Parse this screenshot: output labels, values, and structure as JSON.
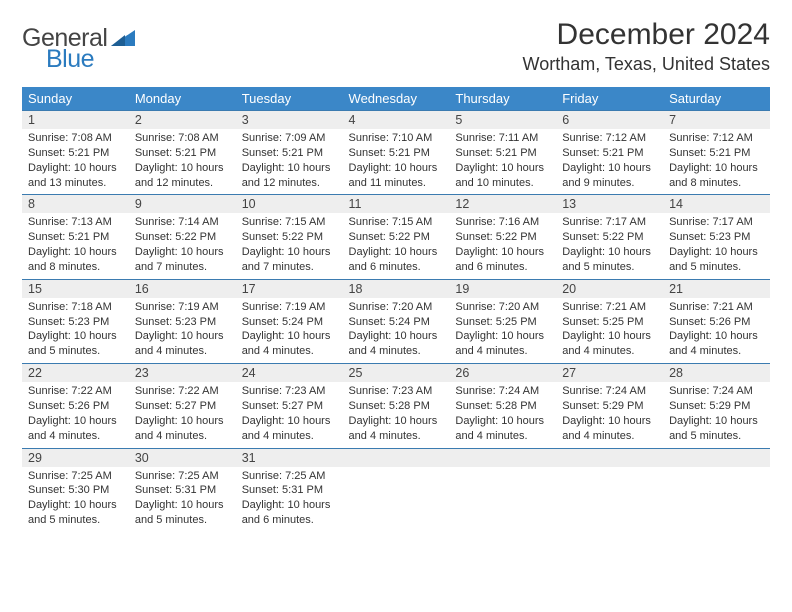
{
  "logo": {
    "text_top": "General",
    "text_bottom": "Blue",
    "tri_color": "#2b7bbf"
  },
  "title": "December 2024",
  "location": "Wortham, Texas, United States",
  "colors": {
    "header_bg": "#3b87c8",
    "header_fg": "#ffffff",
    "daynum_bg": "#eeeeee",
    "row_border": "#3b7bb0",
    "text": "#333333"
  },
  "weekdays": [
    "Sunday",
    "Monday",
    "Tuesday",
    "Wednesday",
    "Thursday",
    "Friday",
    "Saturday"
  ],
  "weeks": [
    [
      {
        "n": "1",
        "sr": "7:08 AM",
        "ss": "5:21 PM",
        "dl": "10 hours and 13 minutes."
      },
      {
        "n": "2",
        "sr": "7:08 AM",
        "ss": "5:21 PM",
        "dl": "10 hours and 12 minutes."
      },
      {
        "n": "3",
        "sr": "7:09 AM",
        "ss": "5:21 PM",
        "dl": "10 hours and 12 minutes."
      },
      {
        "n": "4",
        "sr": "7:10 AM",
        "ss": "5:21 PM",
        "dl": "10 hours and 11 minutes."
      },
      {
        "n": "5",
        "sr": "7:11 AM",
        "ss": "5:21 PM",
        "dl": "10 hours and 10 minutes."
      },
      {
        "n": "6",
        "sr": "7:12 AM",
        "ss": "5:21 PM",
        "dl": "10 hours and 9 minutes."
      },
      {
        "n": "7",
        "sr": "7:12 AM",
        "ss": "5:21 PM",
        "dl": "10 hours and 8 minutes."
      }
    ],
    [
      {
        "n": "8",
        "sr": "7:13 AM",
        "ss": "5:21 PM",
        "dl": "10 hours and 8 minutes."
      },
      {
        "n": "9",
        "sr": "7:14 AM",
        "ss": "5:22 PM",
        "dl": "10 hours and 7 minutes."
      },
      {
        "n": "10",
        "sr": "7:15 AM",
        "ss": "5:22 PM",
        "dl": "10 hours and 7 minutes."
      },
      {
        "n": "11",
        "sr": "7:15 AM",
        "ss": "5:22 PM",
        "dl": "10 hours and 6 minutes."
      },
      {
        "n": "12",
        "sr": "7:16 AM",
        "ss": "5:22 PM",
        "dl": "10 hours and 6 minutes."
      },
      {
        "n": "13",
        "sr": "7:17 AM",
        "ss": "5:22 PM",
        "dl": "10 hours and 5 minutes."
      },
      {
        "n": "14",
        "sr": "7:17 AM",
        "ss": "5:23 PM",
        "dl": "10 hours and 5 minutes."
      }
    ],
    [
      {
        "n": "15",
        "sr": "7:18 AM",
        "ss": "5:23 PM",
        "dl": "10 hours and 5 minutes."
      },
      {
        "n": "16",
        "sr": "7:19 AM",
        "ss": "5:23 PM",
        "dl": "10 hours and 4 minutes."
      },
      {
        "n": "17",
        "sr": "7:19 AM",
        "ss": "5:24 PM",
        "dl": "10 hours and 4 minutes."
      },
      {
        "n": "18",
        "sr": "7:20 AM",
        "ss": "5:24 PM",
        "dl": "10 hours and 4 minutes."
      },
      {
        "n": "19",
        "sr": "7:20 AM",
        "ss": "5:25 PM",
        "dl": "10 hours and 4 minutes."
      },
      {
        "n": "20",
        "sr": "7:21 AM",
        "ss": "5:25 PM",
        "dl": "10 hours and 4 minutes."
      },
      {
        "n": "21",
        "sr": "7:21 AM",
        "ss": "5:26 PM",
        "dl": "10 hours and 4 minutes."
      }
    ],
    [
      {
        "n": "22",
        "sr": "7:22 AM",
        "ss": "5:26 PM",
        "dl": "10 hours and 4 minutes."
      },
      {
        "n": "23",
        "sr": "7:22 AM",
        "ss": "5:27 PM",
        "dl": "10 hours and 4 minutes."
      },
      {
        "n": "24",
        "sr": "7:23 AM",
        "ss": "5:27 PM",
        "dl": "10 hours and 4 minutes."
      },
      {
        "n": "25",
        "sr": "7:23 AM",
        "ss": "5:28 PM",
        "dl": "10 hours and 4 minutes."
      },
      {
        "n": "26",
        "sr": "7:24 AM",
        "ss": "5:28 PM",
        "dl": "10 hours and 4 minutes."
      },
      {
        "n": "27",
        "sr": "7:24 AM",
        "ss": "5:29 PM",
        "dl": "10 hours and 4 minutes."
      },
      {
        "n": "28",
        "sr": "7:24 AM",
        "ss": "5:29 PM",
        "dl": "10 hours and 5 minutes."
      }
    ],
    [
      {
        "n": "29",
        "sr": "7:25 AM",
        "ss": "5:30 PM",
        "dl": "10 hours and 5 minutes."
      },
      {
        "n": "30",
        "sr": "7:25 AM",
        "ss": "5:31 PM",
        "dl": "10 hours and 5 minutes."
      },
      {
        "n": "31",
        "sr": "7:25 AM",
        "ss": "5:31 PM",
        "dl": "10 hours and 6 minutes."
      },
      null,
      null,
      null,
      null
    ]
  ],
  "labels": {
    "sunrise": "Sunrise:",
    "sunset": "Sunset:",
    "daylight": "Daylight:"
  }
}
